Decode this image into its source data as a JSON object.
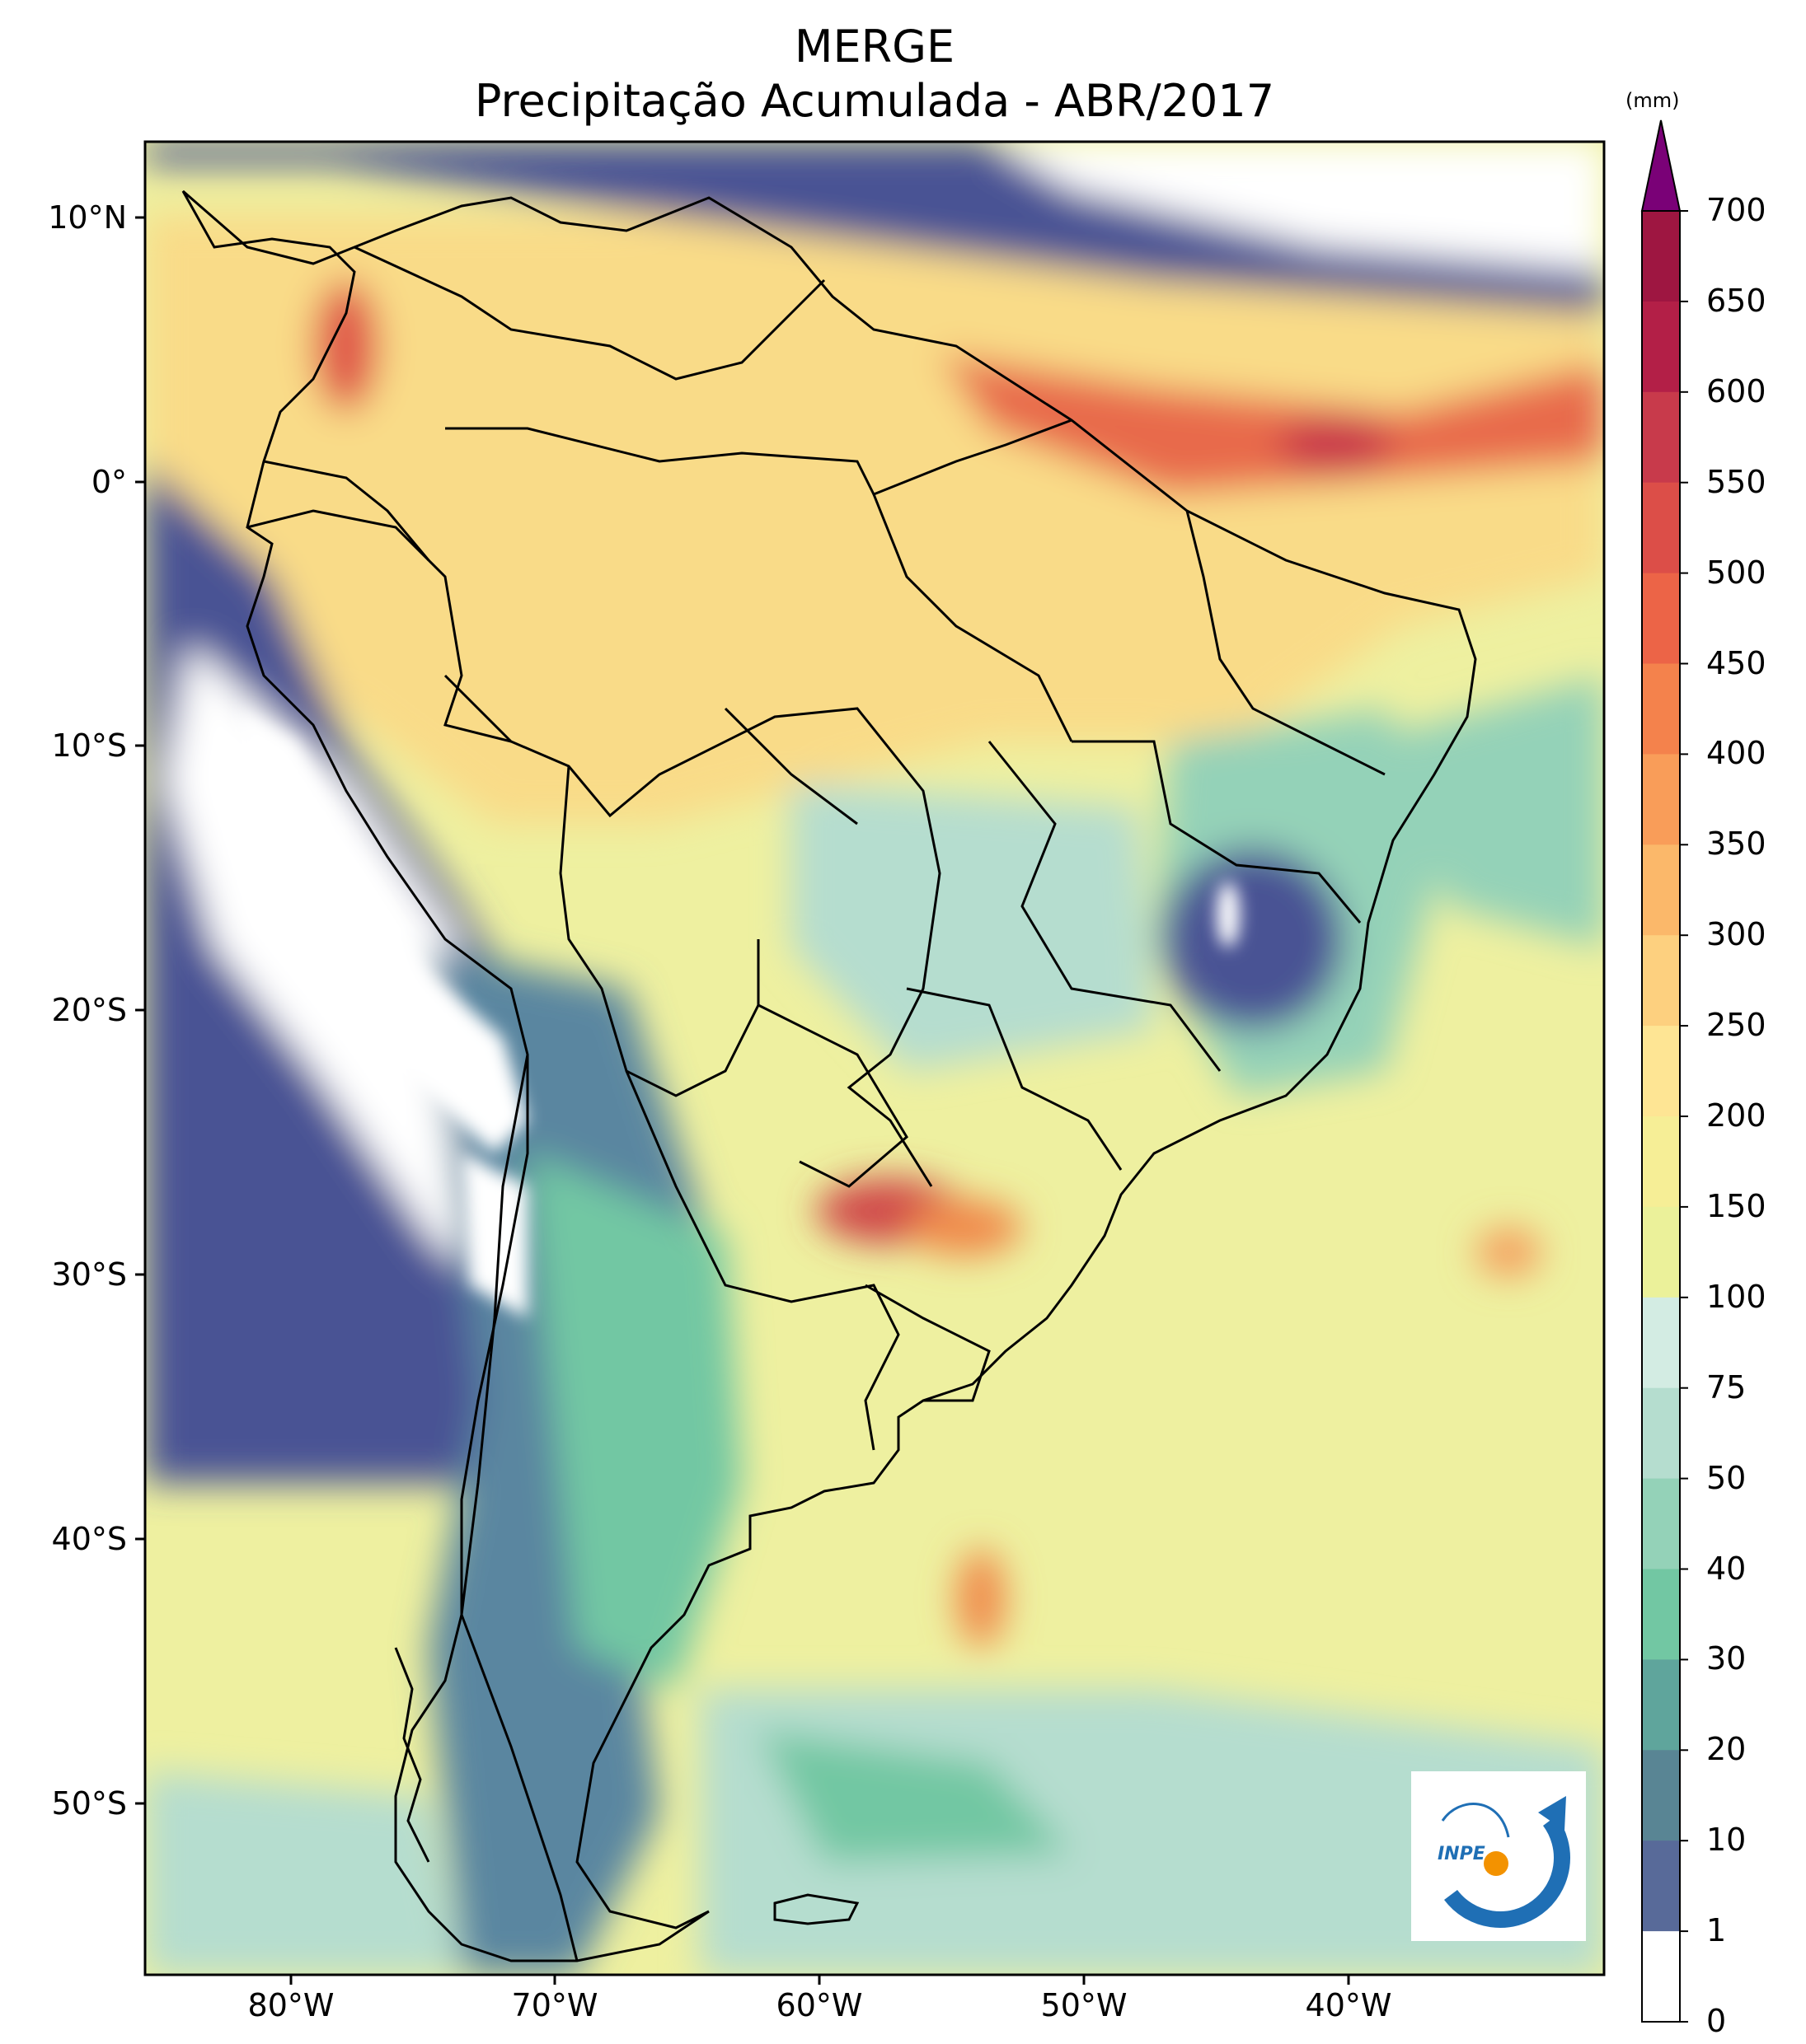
{
  "title_line1": "MERGE",
  "title_line2": "Precipitação Acumulada - ABR/2017",
  "latitude_labels": [
    "10°N",
    "0°",
    "10°S",
    "20°S",
    "30°S",
    "40°S",
    "50°S"
  ],
  "longitude_labels": [
    "80°W",
    "70°W",
    "60°W",
    "50°W",
    "40°W"
  ],
  "colorbar": {
    "unit": "(mm)",
    "labels": [
      "700",
      "650",
      "600",
      "550",
      "500",
      "450",
      "400",
      "350",
      "300",
      "250",
      "200",
      "150",
      "100",
      "75",
      "50",
      "40",
      "30",
      "20",
      "10",
      "1",
      "0"
    ],
    "colors": [
      "#9e1641",
      "#b31f47",
      "#c83a4b",
      "#dc4e48",
      "#ec6447",
      "#f4824c",
      "#f99d59",
      "#fbb86a",
      "#fdd07f",
      "#fee594",
      "#f6ee96",
      "#ebf19a",
      "#d3ece3",
      "#b5ddcf",
      "#94d2b8",
      "#72c7a3",
      "#5fa59c",
      "#598594",
      "#586a99",
      "#4a5394",
      "#ffffff"
    ],
    "extend_color": "#7a0177"
  },
  "logo": {
    "text": "INPE"
  },
  "colors": {
    "ocean_base": "#eef0a0",
    "dry_blue": "#4a5394",
    "wet_red": "#d04a48"
  }
}
